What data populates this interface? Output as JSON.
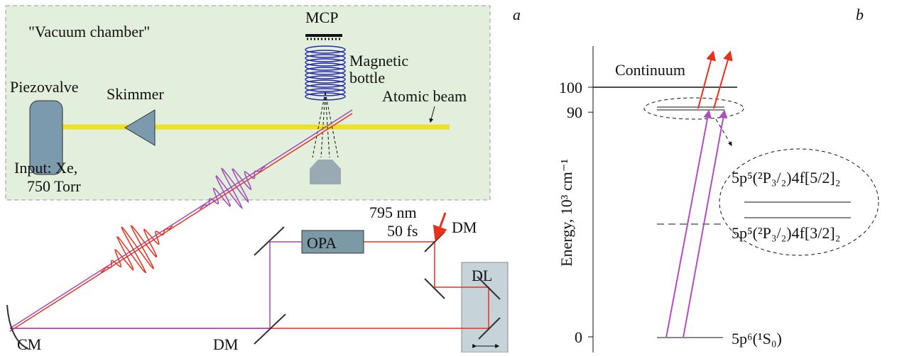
{
  "panel_a": {
    "label": "a",
    "chamber": "\"Vacuum chamber\"",
    "mcp": "MCP",
    "magnetic": "Magnetic",
    "bottle": "bottle",
    "atomic_beam": "Atomic beam",
    "piezovalve": "Piezovalve",
    "skimmer": "Skimmer",
    "input_1": "Input: Xe,",
    "input_2": "750 Torr",
    "opa": "OPA",
    "wavelength": "795 nm",
    "duration": "50 fs",
    "dm_top": "DM",
    "dl": "DL",
    "cm": "CM",
    "dm_bottom": "DM"
  },
  "panel_b": {
    "label": "b",
    "y_axis_label": "Energy, 10³ cm⁻¹",
    "yticks": [
      0,
      90,
      100
    ],
    "continuum": "Continuum",
    "level_upper": "5p⁵(²P₃/₂)4f[5/2]₂",
    "level_lower": "5p⁵(²P₃/₂)4f[3/2]₂",
    "ground": "5p⁶(¹S₀)"
  }
}
